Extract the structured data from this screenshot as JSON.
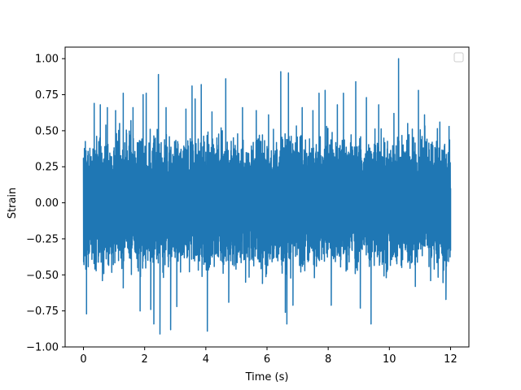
{
  "chart_data": {
    "type": "line",
    "title": "",
    "xlabel": "Time (s)",
    "ylabel": "Strain",
    "xlim": [
      -0.6,
      12.6
    ],
    "ylim": [
      -1.0,
      1.08
    ],
    "x_ticks": [
      0,
      2,
      4,
      6,
      8,
      10,
      12
    ],
    "x_tick_labels": [
      "0",
      "2",
      "4",
      "6",
      "8",
      "10",
      "12"
    ],
    "y_ticks": [
      -1.0,
      -0.75,
      -0.5,
      -0.25,
      0.0,
      0.25,
      0.5,
      0.75,
      1.0
    ],
    "y_tick_labels": [
      "−1.00",
      "−0.75",
      "−0.50",
      "−0.25",
      "0.00",
      "0.25",
      "0.50",
      "0.75",
      "1.00"
    ],
    "grid": false,
    "legend": {
      "placement": "top-right",
      "entries": []
    },
    "series": [
      {
        "color": "#1f77b4",
        "x_range": [
          0,
          12
        ],
        "sample_count": 2400,
        "typical_amplitude": 0.5,
        "peaks": [
          {
            "x": 0.08,
            "y": 0.36
          },
          {
            "x": 0.1,
            "y": -0.77
          },
          {
            "x": 0.1,
            "y": 0.1
          },
          {
            "x": 0.35,
            "y": 0.69
          },
          {
            "x": 0.55,
            "y": 0.68
          },
          {
            "x": 0.62,
            "y": -0.54
          },
          {
            "x": 0.78,
            "y": 0.66
          },
          {
            "x": 1.05,
            "y": 0.64
          },
          {
            "x": 1.18,
            "y": 0.55
          },
          {
            "x": 1.3,
            "y": 0.76
          },
          {
            "x": 1.3,
            "y": -0.59
          },
          {
            "x": 1.55,
            "y": 0.57
          },
          {
            "x": 1.62,
            "y": 0.66
          },
          {
            "x": 1.85,
            "y": -0.75
          },
          {
            "x": 1.95,
            "y": 0.75
          },
          {
            "x": 2.05,
            "y": 0.76
          },
          {
            "x": 2.2,
            "y": -0.74
          },
          {
            "x": 2.3,
            "y": -0.84
          },
          {
            "x": 2.45,
            "y": 0.89
          },
          {
            "x": 2.5,
            "y": -0.91
          },
          {
            "x": 2.7,
            "y": 0.66
          },
          {
            "x": 2.85,
            "y": -0.88
          },
          {
            "x": 3.05,
            "y": -0.72
          },
          {
            "x": 3.35,
            "y": 0.65
          },
          {
            "x": 3.55,
            "y": 0.81
          },
          {
            "x": 3.65,
            "y": 0.72
          },
          {
            "x": 3.85,
            "y": 0.82
          },
          {
            "x": 4.05,
            "y": -0.89
          },
          {
            "x": 4.2,
            "y": 0.63
          },
          {
            "x": 4.65,
            "y": 0.86
          },
          {
            "x": 4.75,
            "y": -0.69
          },
          {
            "x": 5.2,
            "y": 0.66
          },
          {
            "x": 5.3,
            "y": -0.55
          },
          {
            "x": 5.65,
            "y": 0.64
          },
          {
            "x": 5.85,
            "y": -0.56
          },
          {
            "x": 6.05,
            "y": 0.61
          },
          {
            "x": 6.45,
            "y": 0.91
          },
          {
            "x": 6.6,
            "y": -0.76
          },
          {
            "x": 6.65,
            "y": -0.84
          },
          {
            "x": 6.7,
            "y": 0.9
          },
          {
            "x": 6.85,
            "y": -0.71
          },
          {
            "x": 7.15,
            "y": 0.66
          },
          {
            "x": 7.5,
            "y": 0.64
          },
          {
            "x": 7.55,
            "y": -0.52
          },
          {
            "x": 7.7,
            "y": 0.76
          },
          {
            "x": 7.9,
            "y": 0.78
          },
          {
            "x": 8.1,
            "y": -0.71
          },
          {
            "x": 8.3,
            "y": 0.68
          },
          {
            "x": 8.5,
            "y": 0.76
          },
          {
            "x": 8.9,
            "y": 0.84
          },
          {
            "x": 9.05,
            "y": -0.73
          },
          {
            "x": 9.25,
            "y": 0.73
          },
          {
            "x": 9.4,
            "y": -0.84
          },
          {
            "x": 9.65,
            "y": 0.68
          },
          {
            "x": 9.9,
            "y": -0.52
          },
          {
            "x": 10.15,
            "y": 0.62
          },
          {
            "x": 10.3,
            "y": 1.0
          },
          {
            "x": 10.6,
            "y": 0.55
          },
          {
            "x": 10.85,
            "y": -0.58
          },
          {
            "x": 10.95,
            "y": 0.78
          },
          {
            "x": 11.15,
            "y": 0.61
          },
          {
            "x": 11.35,
            "y": -0.54
          },
          {
            "x": 11.65,
            "y": 0.56
          },
          {
            "x": 11.85,
            "y": -0.67
          },
          {
            "x": 11.95,
            "y": 0.53
          },
          {
            "x": 12.0,
            "y": -0.33
          }
        ]
      }
    ]
  }
}
